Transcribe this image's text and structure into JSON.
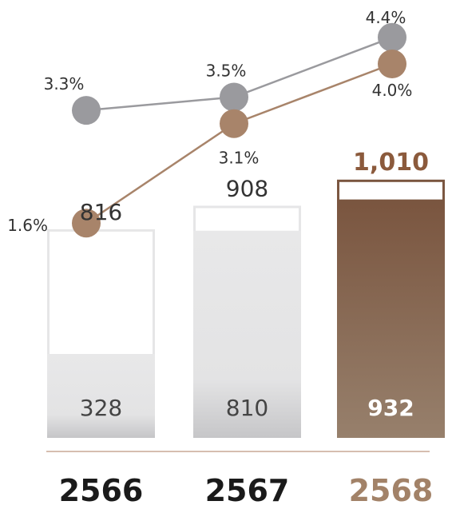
{
  "chart_data": {
    "type": "bar",
    "categories": [
      "2566",
      "2567",
      "2568"
    ],
    "series": [
      {
        "values": [
          816,
          908,
          1010
        ],
        "value_labels": [
          "816",
          "908",
          "1,010"
        ]
      },
      {
        "values": [
          328,
          810,
          932
        ],
        "value_labels": [
          "328",
          "810",
          "932"
        ]
      }
    ],
    "lines": [
      {
        "values": [
          3.3,
          3.5,
          4.4
        ],
        "value_labels": [
          "3.3%",
          "3.5%",
          "4.4%"
        ],
        "color": "#9a9a9e"
      },
      {
        "values": [
          1.6,
          3.1,
          4.0
        ],
        "value_labels": [
          "1.6%",
          "3.1%",
          "4.0%"
        ],
        "color": "#a8846a"
      }
    ],
    "colors": {
      "bar_gray": "#e6e6e7",
      "bar_brown_top": "#7a553f",
      "bar_brown_bottom": "#97806c",
      "highlight_text": "#8b5a3c",
      "year_highlight": "#a28268",
      "year_dark": "#1a1a1a",
      "axis": "#c9a995"
    },
    "highlight_index": 2
  }
}
